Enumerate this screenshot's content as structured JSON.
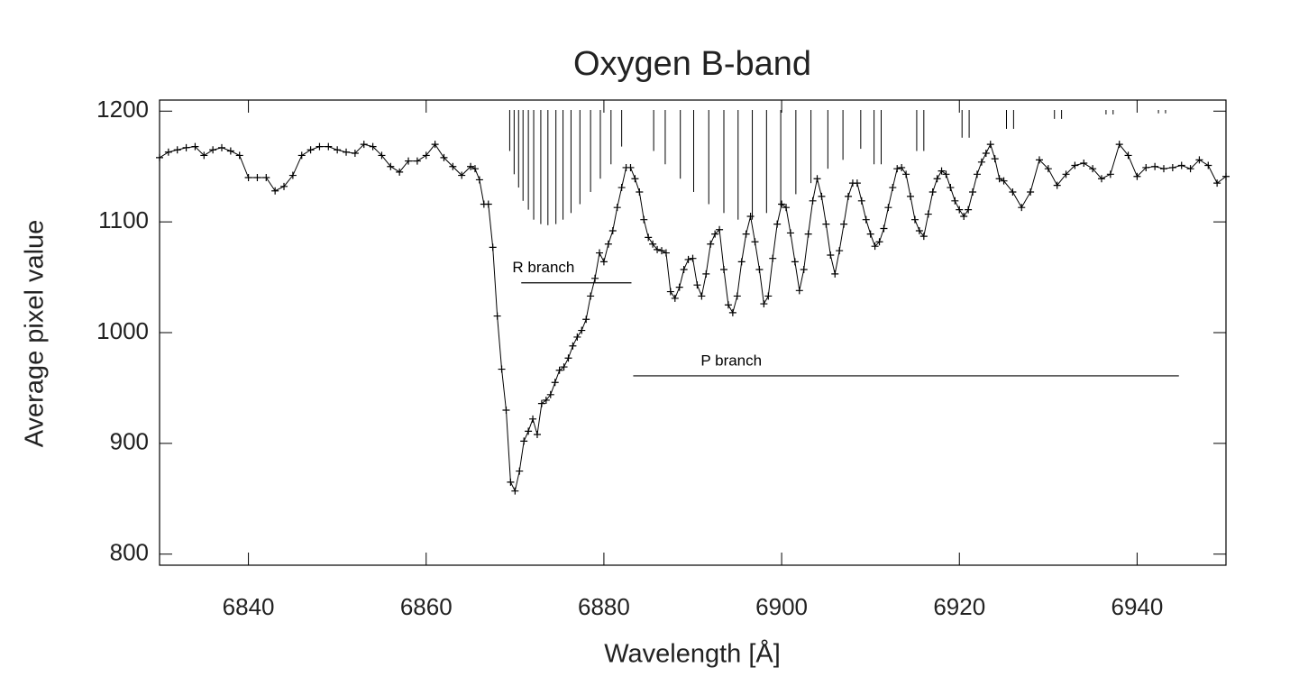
{
  "chart_data": {
    "type": "line",
    "title": "Oxygen B-band",
    "xlabel": "Wavelength [Å]",
    "ylabel": "Average pixel value",
    "xlim": [
      6830,
      6950
    ],
    "ylim": [
      790,
      1210
    ],
    "xticks": [
      6840,
      6860,
      6880,
      6900,
      6920,
      6940
    ],
    "yticks": [
      800,
      900,
      1000,
      1100,
      1200
    ],
    "color": "#000000",
    "marker": "+",
    "x": [
      6830,
      6831,
      6832,
      6833,
      6834,
      6835,
      6836,
      6837,
      6838,
      6839,
      6840,
      6841,
      6842,
      6843,
      6844,
      6845,
      6846,
      6847,
      6848,
      6849,
      6850,
      6851,
      6852,
      6853,
      6854,
      6855,
      6856,
      6857,
      6858,
      6859,
      6860,
      6861,
      6862,
      6863,
      6864,
      6865,
      6865.5,
      6866,
      6866.5,
      6867,
      6867.5,
      6868,
      6868.5,
      6869,
      6869.5,
      6870,
      6870.5,
      6871,
      6871.5,
      6872,
      6872.5,
      6873,
      6873.5,
      6874,
      6874.5,
      6875,
      6875.5,
      6876,
      6876.5,
      6877,
      6877.5,
      6878,
      6878.5,
      6879,
      6879.5,
      6880,
      6880.5,
      6881,
      6881.5,
      6882,
      6882.5,
      6883,
      6883.5,
      6884,
      6884.5,
      6885,
      6885.5,
      6886,
      6886.5,
      6887,
      6887.5,
      6888,
      6888.5,
      6889,
      6889.5,
      6890,
      6890.5,
      6891,
      6891.5,
      6892,
      6892.5,
      6893,
      6893.5,
      6894,
      6894.5,
      6895,
      6895.5,
      6896,
      6896.5,
      6897,
      6897.5,
      6898,
      6898.5,
      6899,
      6899.5,
      6900,
      6900.5,
      6901,
      6901.5,
      6902,
      6902.5,
      6903,
      6903.5,
      6904,
      6904.5,
      6905,
      6905.5,
      6906,
      6906.5,
      6907,
      6907.5,
      6908,
      6908.5,
      6909,
      6909.5,
      6910,
      6910.5,
      6911,
      6911.5,
      6912,
      6912.5,
      6913,
      6913.5,
      6914,
      6914.5,
      6915,
      6915.5,
      6916,
      6916.5,
      6917,
      6917.5,
      6918,
      6918.5,
      6919,
      6919.5,
      6920,
      6920.5,
      6921,
      6921.5,
      6922,
      6922.5,
      6923,
      6923.5,
      6924,
      6924.5,
      6925,
      6926,
      6927,
      6928,
      6929,
      6930,
      6931,
      6932,
      6933,
      6934,
      6935,
      6936,
      6937,
      6938,
      6939,
      6940,
      6941,
      6942,
      6943,
      6944,
      6945,
      6946,
      6947,
      6948,
      6949,
      6950
    ],
    "values": [
      1158,
      1163,
      1165,
      1167,
      1168,
      1160,
      1165,
      1167,
      1164,
      1160,
      1140,
      1140,
      1140,
      1128,
      1132,
      1142,
      1160,
      1165,
      1168,
      1168,
      1165,
      1163,
      1162,
      1170,
      1168,
      1160,
      1150,
      1145,
      1155,
      1155,
      1160,
      1170,
      1158,
      1150,
      1142,
      1150,
      1148,
      1138,
      1116,
      1116,
      1077,
      1015,
      967,
      930,
      865,
      857,
      875,
      902,
      911,
      922,
      908,
      936,
      939,
      944,
      955,
      966,
      969,
      977,
      988,
      996,
      1002,
      1012,
      1033,
      1049,
      1072,
      1064,
      1080,
      1092,
      1113,
      1131,
      1149,
      1149,
      1139,
      1127,
      1102,
      1086,
      1080,
      1075,
      1074,
      1072,
      1037,
      1031,
      1041,
      1057,
      1066,
      1067,
      1043,
      1033,
      1053,
      1080,
      1089,
      1093,
      1057,
      1025,
      1018,
      1033,
      1064,
      1089,
      1105,
      1082,
      1057,
      1026,
      1033,
      1067,
      1098,
      1116,
      1113,
      1090,
      1064,
      1038,
      1057,
      1089,
      1119,
      1139,
      1123,
      1098,
      1070,
      1053,
      1074,
      1098,
      1123,
      1135,
      1135,
      1119,
      1102,
      1089,
      1078,
      1082,
      1094,
      1113,
      1131,
      1148,
      1149,
      1143,
      1123,
      1102,
      1092,
      1087,
      1107,
      1127,
      1139,
      1146,
      1143,
      1131,
      1119,
      1111,
      1105,
      1111,
      1127,
      1143,
      1154,
      1162,
      1170,
      1157,
      1139,
      1137,
      1127,
      1113,
      1127,
      1156,
      1148,
      1133,
      1143,
      1151,
      1153,
      1148,
      1139,
      1143,
      1170,
      1160,
      1141,
      1149,
      1150,
      1148,
      1149,
      1151,
      1148,
      1156,
      1151,
      1135,
      1141
    ],
    "line_list": {
      "x": [
        6869.4,
        6869.9,
        6870.4,
        6870.9,
        6871.5,
        6872.1,
        6872.9,
        6873.7,
        6874.6,
        6875.4,
        6876.3,
        6877.3,
        6878.5,
        6879.6,
        6880.8,
        6882.0,
        6885.6,
        6886.9,
        6888.6,
        6890.1,
        6891.8,
        6893.5,
        6895.1,
        6896.7,
        6898.3,
        6899.9,
        6901.6,
        6903.3,
        6905.2,
        6906.9,
        6908.9,
        6910.4,
        6911.2,
        6915.2,
        6916.0,
        6920.3,
        6921.1,
        6925.3,
        6926.1,
        6930.7,
        6931.5,
        6936.5,
        6937.3,
        6942.4,
        6943.2
      ],
      "values": [
        1164,
        1143,
        1131,
        1119,
        1111,
        1102,
        1098,
        1097,
        1098,
        1102,
        1108,
        1116,
        1127,
        1139,
        1152,
        1168,
        1164,
        1152,
        1139,
        1127,
        1116,
        1108,
        1102,
        1102,
        1108,
        1114,
        1125,
        1135,
        1148,
        1156,
        1166,
        1152,
        1152,
        1164,
        1164,
        1176,
        1176,
        1184,
        1184,
        1193,
        1193,
        1197,
        1197,
        1198,
        1198
      ]
    },
    "annotations": [
      {
        "text": "R branch",
        "x": [
          6870.7,
          6883.1
        ],
        "y": 1045,
        "text_x": 6869.7
      },
      {
        "text": "P branch",
        "x": [
          6883.3,
          6944.7
        ],
        "y": 961,
        "text_x": 6890.9
      }
    ]
  }
}
